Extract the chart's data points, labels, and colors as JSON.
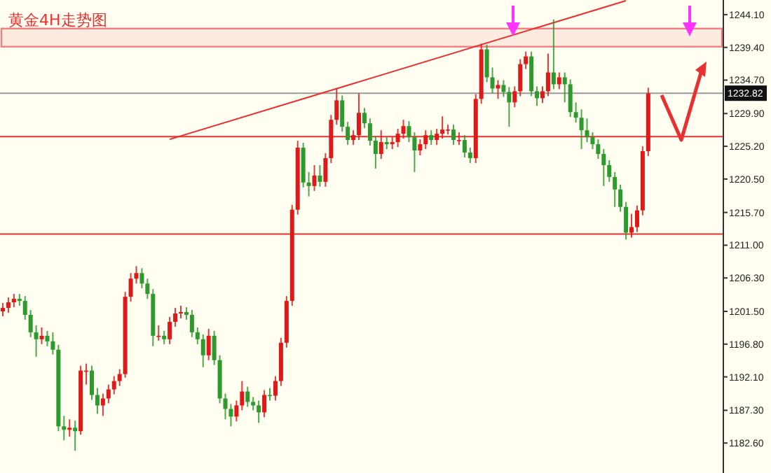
{
  "chart_data": {
    "type": "candlestick",
    "title": "黄金4H走势图",
    "categories": [
      null,
      null,
      null,
      null,
      null,
      null,
      null,
      null,
      null,
      null,
      null,
      null,
      null,
      null,
      null,
      null,
      null,
      null,
      null,
      null,
      null,
      null,
      null,
      null,
      null,
      null,
      null,
      null,
      null,
      null,
      null,
      null,
      null,
      null,
      null,
      null,
      null,
      null,
      null,
      null,
      null,
      null,
      null,
      null,
      null,
      null,
      null,
      null,
      null,
      null,
      null,
      null,
      null,
      null,
      null,
      null,
      null,
      null,
      null,
      null,
      null,
      null,
      null,
      null,
      null,
      null,
      null,
      null,
      null,
      null,
      null,
      null,
      null,
      null,
      null,
      null,
      null,
      null,
      null,
      null,
      null,
      null,
      null,
      null,
      null,
      null,
      null,
      null,
      null,
      null,
      null,
      null,
      null,
      null,
      null,
      null,
      null,
      null,
      null,
      null,
      null,
      null,
      null,
      null,
      null,
      null,
      null,
      null,
      null,
      null,
      null,
      null,
      null,
      null,
      null,
      null,
      null,
      null,
      null,
      null,
      null,
      null,
      null,
      null,
      null,
      null,
      null,
      null,
      null,
      null
    ],
    "ohlc": [
      [
        1201.5,
        1202.7,
        1200.8,
        1202.0
      ],
      [
        1202.0,
        1203.5,
        1201.3,
        1202.8
      ],
      [
        1202.8,
        1204.0,
        1202.1,
        1203.3
      ],
      [
        1203.3,
        1204.0,
        1202.3,
        1203.0
      ],
      [
        1203.0,
        1203.7,
        1200.3,
        1201.0
      ],
      [
        1201.0,
        1201.7,
        1197.8,
        1198.5
      ],
      [
        1198.5,
        1199.5,
        1195.0,
        1197.5
      ],
      [
        1197.5,
        1199.2,
        1196.8,
        1198.0
      ],
      [
        1198.0,
        1198.7,
        1196.5,
        1197.2
      ],
      [
        1197.2,
        1198.5,
        1195.3,
        1196.0
      ],
      [
        1196.0,
        1196.7,
        1184.3,
        1185.0
      ],
      [
        1185.0,
        1186.5,
        1183.0,
        1184.5
      ],
      [
        1184.5,
        1186.0,
        1183.5,
        1184.8
      ],
      [
        1184.8,
        1185.8,
        1181.5,
        1184.3
      ],
      [
        1184.3,
        1193.7,
        1183.8,
        1193.0
      ],
      [
        1193.0,
        1194.0,
        1191.0,
        1193.0
      ],
      [
        1193.0,
        1193.7,
        1188.8,
        1189.5
      ],
      [
        1189.5,
        1190.5,
        1186.8,
        1188.0
      ],
      [
        1188.0,
        1189.7,
        1186.5,
        1189.0
      ],
      [
        1189.0,
        1191.0,
        1188.3,
        1190.3
      ],
      [
        1190.3,
        1192.2,
        1189.6,
        1191.5
      ],
      [
        1191.5,
        1193.2,
        1190.8,
        1192.5
      ],
      [
        1192.5,
        1204.3,
        1192.0,
        1203.6
      ],
      [
        1203.6,
        1207.0,
        1202.9,
        1206.2
      ],
      [
        1206.2,
        1208.0,
        1205.5,
        1207.0
      ],
      [
        1207.0,
        1207.7,
        1204.8,
        1205.5
      ],
      [
        1205.5,
        1206.2,
        1203.3,
        1204.0
      ],
      [
        1204.0,
        1204.7,
        1196.5,
        1198.0
      ],
      [
        1198.0,
        1199.5,
        1197.3,
        1198.0
      ],
      [
        1198.0,
        1198.7,
        1196.8,
        1197.5
      ],
      [
        1197.5,
        1200.7,
        1196.8,
        1200.0
      ],
      [
        1200.0,
        1202.0,
        1199.3,
        1201.2
      ],
      [
        1201.2,
        1202.3,
        1200.5,
        1201.4
      ],
      [
        1201.4,
        1202.1,
        1200.3,
        1201.0
      ],
      [
        1201.0,
        1201.7,
        1197.8,
        1198.5
      ],
      [
        1198.5,
        1199.2,
        1196.8,
        1197.5
      ],
      [
        1197.5,
        1198.2,
        1193.5,
        1195.2
      ],
      [
        1195.2,
        1199.0,
        1194.5,
        1198.0
      ],
      [
        1198.0,
        1198.7,
        1193.8,
        1194.5
      ],
      [
        1194.5,
        1195.2,
        1188.3,
        1189.0
      ],
      [
        1189.0,
        1189.7,
        1186.0,
        1187.5
      ],
      [
        1187.5,
        1188.2,
        1185.0,
        1186.4
      ],
      [
        1186.4,
        1188.7,
        1185.7,
        1188.0
      ],
      [
        1188.0,
        1191.5,
        1187.3,
        1190.0
      ],
      [
        1190.0,
        1190.7,
        1187.8,
        1188.5
      ],
      [
        1188.5,
        1189.2,
        1187.3,
        1188.0
      ],
      [
        1188.0,
        1188.7,
        1185.5,
        1187.0
      ],
      [
        1187.0,
        1190.2,
        1186.3,
        1189.5
      ],
      [
        1189.5,
        1190.5,
        1188.7,
        1189.4
      ],
      [
        1189.4,
        1192.2,
        1188.7,
        1191.5
      ],
      [
        1191.5,
        1197.7,
        1190.8,
        1197.0
      ],
      [
        1197.0,
        1203.7,
        1196.3,
        1203.0
      ],
      [
        1203.0,
        1216.8,
        1202.3,
        1216.1
      ],
      [
        1216.1,
        1226.0,
        1215.4,
        1225.0
      ],
      [
        1225.0,
        1225.7,
        1219.3,
        1220.0
      ],
      [
        1220.0,
        1221.5,
        1218.0,
        1219.5
      ],
      [
        1219.5,
        1222.5,
        1218.8,
        1221.0
      ],
      [
        1221.0,
        1222.5,
        1219.4,
        1220.1
      ],
      [
        1220.1,
        1224.2,
        1219.4,
        1223.5
      ],
      [
        1223.5,
        1229.7,
        1222.8,
        1229.0
      ],
      [
        1229.0,
        1233.5,
        1228.3,
        1231.8
      ],
      [
        1231.8,
        1232.5,
        1227.3,
        1228.0
      ],
      [
        1228.0,
        1228.7,
        1225.4,
        1226.1
      ],
      [
        1226.1,
        1227.5,
        1225.4,
        1226.8
      ],
      [
        1226.8,
        1232.8,
        1226.1,
        1230.0
      ],
      [
        1230.0,
        1230.7,
        1227.8,
        1228.5
      ],
      [
        1228.5,
        1229.2,
        1225.3,
        1226.0
      ],
      [
        1226.0,
        1226.7,
        1222.0,
        1224.1
      ],
      [
        1224.1,
        1227.5,
        1223.4,
        1225.8
      ],
      [
        1225.8,
        1226.5,
        1224.8,
        1225.5
      ],
      [
        1225.5,
        1226.5,
        1224.8,
        1225.8
      ],
      [
        1225.8,
        1227.7,
        1225.1,
        1227.0
      ],
      [
        1227.0,
        1229.0,
        1226.3,
        1228.1
      ],
      [
        1228.1,
        1228.8,
        1225.8,
        1226.5
      ],
      [
        1226.5,
        1227.2,
        1221.5,
        1224.6
      ],
      [
        1224.6,
        1226.2,
        1223.9,
        1225.5
      ],
      [
        1225.5,
        1227.5,
        1224.8,
        1226.8
      ],
      [
        1226.8,
        1227.5,
        1225.4,
        1226.1
      ],
      [
        1226.1,
        1227.7,
        1225.4,
        1227.0
      ],
      [
        1227.0,
        1229.5,
        1226.3,
        1227.6
      ],
      [
        1227.6,
        1228.3,
        1226.9,
        1227.6
      ],
      [
        1227.6,
        1228.3,
        1225.4,
        1226.1
      ],
      [
        1226.1,
        1227.2,
        1225.4,
        1226.1
      ],
      [
        1226.1,
        1226.8,
        1223.6,
        1224.3
      ],
      [
        1224.3,
        1225.0,
        1222.8,
        1223.5
      ],
      [
        1223.5,
        1232.7,
        1222.8,
        1232.0
      ],
      [
        1232.0,
        1239.9,
        1231.3,
        1239.1
      ],
      [
        1239.1,
        1239.8,
        1234.4,
        1235.1
      ],
      [
        1235.1,
        1236.5,
        1232.8,
        1233.5
      ],
      [
        1233.5,
        1234.7,
        1232.0,
        1234.0
      ],
      [
        1234.0,
        1234.7,
        1232.3,
        1233.0
      ],
      [
        1233.0,
        1233.7,
        1228.0,
        1231.5
      ],
      [
        1231.5,
        1233.8,
        1230.8,
        1233.1
      ],
      [
        1233.1,
        1237.7,
        1232.4,
        1237.0
      ],
      [
        1237.0,
        1238.8,
        1236.3,
        1238.1
      ],
      [
        1238.1,
        1238.8,
        1232.4,
        1233.1
      ],
      [
        1233.1,
        1233.8,
        1231.0,
        1232.1
      ],
      [
        1232.1,
        1233.8,
        1231.4,
        1233.1
      ],
      [
        1233.1,
        1238.5,
        1232.4,
        1235.8
      ],
      [
        1235.8,
        1243.4,
        1233.4,
        1234.1
      ],
      [
        1234.1,
        1235.8,
        1233.4,
        1235.1
      ],
      [
        1235.1,
        1235.8,
        1231.5,
        1234.1
      ],
      [
        1234.1,
        1234.8,
        1229.4,
        1230.1
      ],
      [
        1230.1,
        1231.5,
        1228.6,
        1229.3
      ],
      [
        1229.3,
        1230.5,
        1224.8,
        1227.5
      ],
      [
        1227.5,
        1229.2,
        1225.8,
        1226.5
      ],
      [
        1226.5,
        1227.2,
        1224.8,
        1225.5
      ],
      [
        1225.5,
        1226.2,
        1223.4,
        1224.1
      ],
      [
        1224.1,
        1224.8,
        1219.5,
        1222.5
      ],
      [
        1222.5,
        1223.2,
        1220.1,
        1220.8
      ],
      [
        1220.8,
        1221.5,
        1216.5,
        1219.0
      ],
      [
        1219.0,
        1219.7,
        1215.8,
        1216.5
      ],
      [
        1216.5,
        1217.2,
        1211.8,
        1212.8
      ],
      [
        1212.8,
        1215.5,
        1212.1,
        1213.6
      ],
      [
        1213.6,
        1216.7,
        1212.9,
        1216.0
      ],
      [
        1216.0,
        1225.2,
        1215.3,
        1224.5
      ],
      [
        1224.5,
        1233.6,
        1223.8,
        1232.8
      ],
      null,
      null,
      null,
      null,
      null,
      null,
      null,
      null,
      null,
      null,
      null,
      null,
      null
    ],
    "series": [
      {
        "type": "line",
        "color": "#e83030",
        "values": [
          null,
          null,
          null,
          null,
          null,
          null,
          null,
          null,
          null,
          null,
          null,
          null,
          null,
          null,
          null,
          null,
          null,
          null,
          null,
          null,
          null,
          null,
          null,
          null,
          null,
          null,
          null,
          null,
          null,
          null,
          1226.2,
          null,
          null,
          null,
          null,
          null,
          null,
          null,
          null,
          null,
          null,
          null,
          null,
          null,
          null,
          null,
          null,
          null,
          null,
          null,
          null,
          null,
          null,
          null,
          null,
          null,
          null,
          null,
          null,
          null,
          null,
          null,
          null,
          null,
          null,
          null,
          null,
          null,
          null,
          null,
          null,
          null,
          null,
          null,
          null,
          null,
          null,
          null,
          null,
          null,
          null,
          null,
          null,
          null,
          null,
          null,
          null,
          null,
          null,
          null,
          null,
          null,
          null,
          null,
          null,
          null,
          null,
          null,
          null,
          null,
          null,
          null,
          null,
          null,
          null,
          null,
          null,
          null,
          null,
          null,
          null,
          null,
          1246.1,
          null,
          null,
          null,
          null,
          null,
          null,
          null,
          null,
          null,
          null,
          null,
          null,
          null,
          null,
          null,
          null,
          null
        ]
      }
    ],
    "ylim": [
      1178.3,
      1246.2
    ],
    "yticks": [
      {
        "value": 1244.1,
        "label": "1244.10"
      },
      {
        "value": 1239.4,
        "label": "1239.40"
      },
      {
        "value": 1234.7,
        "label": "1234.70"
      },
      {
        "value": 1229.9,
        "label": "1229.90"
      },
      {
        "value": 1225.2,
        "label": "1225.20"
      },
      {
        "value": 1220.5,
        "label": "1220.50"
      },
      {
        "value": 1215.7,
        "label": "1215.70"
      },
      {
        "value": 1211.0,
        "label": "1211.00"
      },
      {
        "value": 1206.3,
        "label": "1206.30"
      },
      {
        "value": 1201.5,
        "label": "1201.50"
      },
      {
        "value": 1196.8,
        "label": "1196.80"
      },
      {
        "value": 1192.1,
        "label": "1192.10"
      },
      {
        "value": 1187.3,
        "label": "1187.30"
      },
      {
        "value": 1182.6,
        "label": "1182.60"
      }
    ],
    "ref_lines": [
      {
        "axis": "y",
        "value": 1232.82,
        "label": "1232.82",
        "color": "#999999"
      },
      {
        "axis": "y",
        "value": 1226.6,
        "color": "#e83030"
      },
      {
        "axis": "y",
        "value": 1212.6,
        "color": "#e83030"
      }
    ],
    "bands": [
      {
        "axis": "y",
        "from": 1239.5,
        "to": 1242.1,
        "color": "#f08080"
      }
    ],
    "tick_labels": "y"
  }
}
